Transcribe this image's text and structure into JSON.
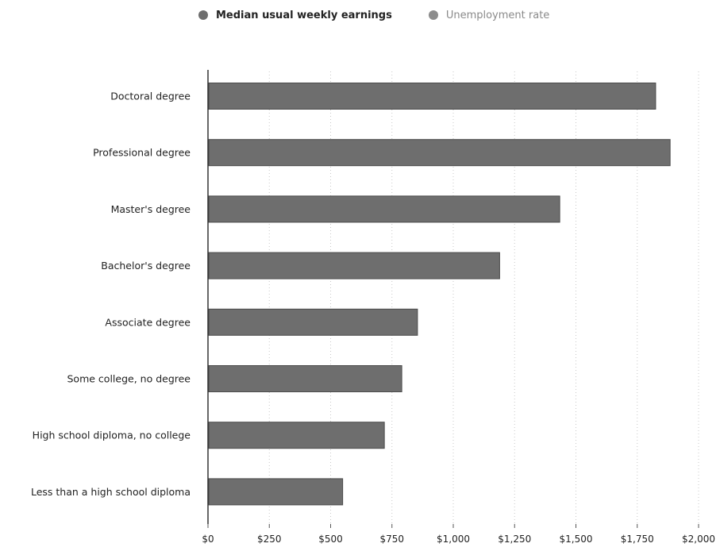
{
  "legend": [
    {
      "label": "Median usual weekly earnings",
      "color": "#6e6e6e",
      "active": true
    },
    {
      "label": "Unemployment rate",
      "color": "#8c8c8c",
      "active": false
    }
  ],
  "chart_data": {
    "type": "bar",
    "orientation": "horizontal",
    "categories": [
      "Doctoral degree",
      "Professional degree",
      "Master's degree",
      "Bachelor's degree",
      "Associate degree",
      "Some college, no degree",
      "High school diploma, no college",
      "Less than a high school diploma"
    ],
    "series": [
      {
        "name": "Median usual weekly earnings",
        "values": [
          1825,
          1884,
          1434,
          1189,
          854,
          790,
          719,
          549
        ]
      }
    ],
    "xlim": [
      0,
      2000
    ],
    "xticks": [
      0,
      250,
      500,
      750,
      1000,
      1250,
      1500,
      1750,
      2000
    ],
    "xtick_labels": [
      "$0",
      "$250",
      "$500",
      "$750",
      "$1,000",
      "$1,250",
      "$1,500",
      "$1,750",
      "$2,000"
    ],
    "grid": "vertical dotted",
    "legend_position": "top",
    "bar_color": "#6e6e6e"
  }
}
